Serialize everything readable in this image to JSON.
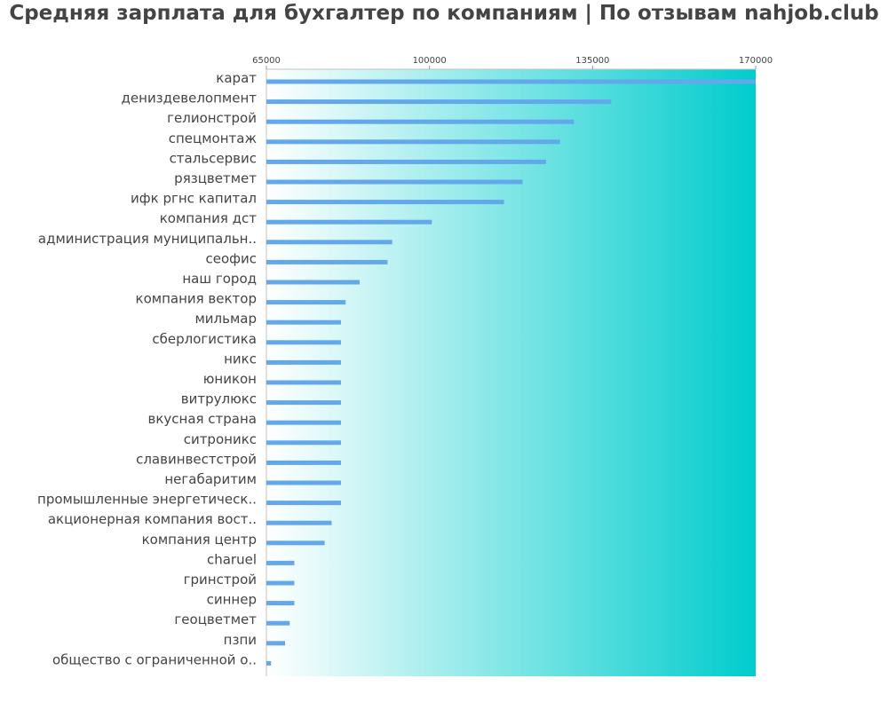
{
  "chart_data": {
    "type": "bar",
    "orientation": "horizontal",
    "title": "Средняя зарплата для бухгалтер по компаниям  | По отзывам nahjob.club",
    "xlabel": "",
    "ylabel": "",
    "xlim": [
      65000,
      170000
    ],
    "x_ticks": [
      65000,
      100000,
      135000,
      170000
    ],
    "x_tick_labels": [
      "65000",
      "100000",
      "135000",
      "170000"
    ],
    "x_axis_position": "top",
    "grid": false,
    "legend": "none",
    "bar_color": "#62a8ea",
    "background_gradient": [
      "#ffffff",
      "#00cccc"
    ],
    "categories": [
      "карат",
      "дениздевелопмент",
      "гелионстрой",
      "спецмонтаж",
      "стальсервис",
      "рязцветмет",
      "ифк ргнс капитал",
      "компания дст",
      "администрация муниципальн..",
      "сеофис",
      "наш город",
      "компания вектор",
      "мильмар",
      "сберлогистика",
      "никс",
      "юникон",
      "витрулюкс",
      "вкусная страна",
      "ситроникс",
      "славинвестстрой",
      "негабаритим",
      "промышленные энергетическ..",
      "акционерная компания вост..",
      "компания центр",
      "charuel",
      "гринстрой",
      "синнер",
      "геоцветмет",
      "пзпи",
      "общество с ограниченной о.."
    ],
    "values": [
      170000,
      139000,
      131000,
      128000,
      125000,
      120000,
      116000,
      100500,
      92000,
      91000,
      85000,
      82000,
      81000,
      81000,
      81000,
      81000,
      81000,
      81000,
      81000,
      81000,
      81000,
      81000,
      79000,
      77500,
      71000,
      71000,
      71000,
      70000,
      69000,
      66000
    ]
  }
}
